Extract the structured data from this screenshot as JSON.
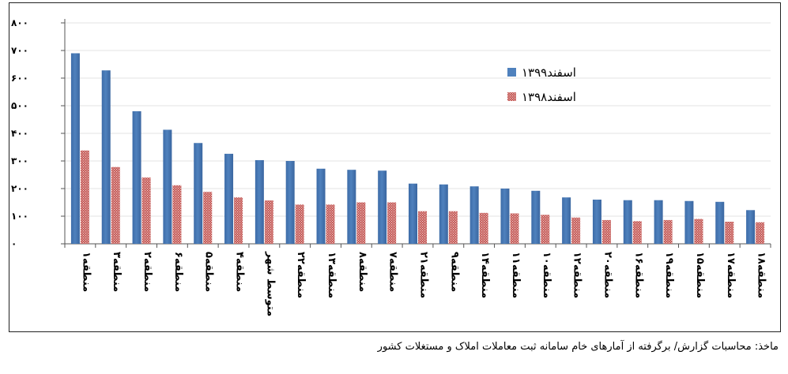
{
  "chart_data": {
    "type": "bar",
    "categories": [
      "منطقه۱",
      "منطقه۳",
      "منطقه۲",
      "منطقه۶",
      "منطقه۵",
      "منطقه۴",
      "متوسط شهر",
      "منطقه۲۲",
      "منطقه۱۳",
      "منطقه۸",
      "منطقه۷",
      "منطقه۲۱",
      "منطقه۹",
      "منطقه۱۴",
      "منطقه۱۱",
      "منطقه۱۰",
      "منطقه۱۲",
      "منطقه۲۰",
      "منطقه۱۶",
      "منطقه۱۹",
      "منطقه۱۵",
      "منطقه۱۷",
      "منطقه۱۸"
    ],
    "series": [
      {
        "name": "اسفند۱۳۹۹",
        "color": "#4F81BD",
        "values": [
          690,
          628,
          480,
          413,
          365,
          326,
          303,
          300,
          272,
          268,
          265,
          218,
          215,
          208,
          200,
          192,
          168,
          160,
          158,
          158,
          155,
          152,
          122
        ]
      },
      {
        "name": "اسفند۱۳۹۸",
        "color": "#C0504D",
        "values": [
          338,
          278,
          240,
          212,
          188,
          168,
          157,
          142,
          142,
          150,
          150,
          118,
          118,
          112,
          110,
          105,
          95,
          86,
          82,
          86,
          90,
          80,
          78
        ]
      }
    ],
    "yticks": [
      "۰",
      "۱۰۰",
      "۲۰۰",
      "۳۰۰",
      "۴۰۰",
      "۵۰۰",
      "۶۰۰",
      "۷۰۰",
      "۸۰۰"
    ],
    "ylim": [
      0,
      800
    ],
    "grid": true,
    "legend_position": "top-right"
  },
  "source": "ماخذ: محاسبات گزارش/ برگرفته از آمارهای خام سامانه ثبت معاملات املاک و مستغلات کشور"
}
